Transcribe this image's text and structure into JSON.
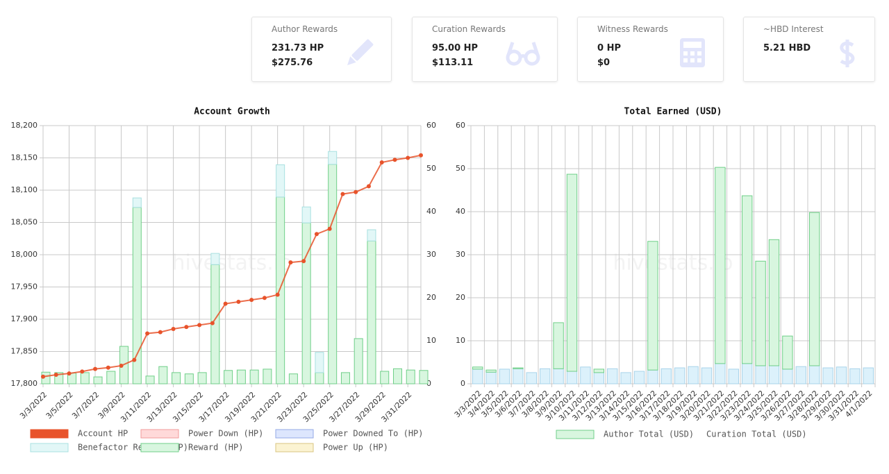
{
  "cards": [
    {
      "title": "Author Rewards",
      "lines": [
        "231.73 HP",
        "$275.76"
      ]
    },
    {
      "title": "Curation Rewards",
      "lines": [
        "95.00 HP",
        "$113.11"
      ]
    },
    {
      "title": "Witness Rewards",
      "lines": [
        "0 HP",
        "$0"
      ]
    },
    {
      "title": "~HBD Interest",
      "lines": [
        "5.21 HBD"
      ]
    }
  ],
  "chart_data": [
    {
      "type": "combo",
      "title": "Account Growth",
      "watermark": "hivestats.io",
      "categories": [
        "3/3/2022",
        null,
        "3/5/2022",
        null,
        "3/7/2022",
        null,
        "3/9/2022",
        null,
        "3/11/2022",
        null,
        "3/13/2022",
        null,
        "3/15/2022",
        null,
        "3/17/2022",
        null,
        "3/19/2022",
        null,
        "3/21/2022",
        null,
        "3/23/2022",
        null,
        "3/25/2022",
        null,
        "3/27/2022",
        null,
        "3/29/2022",
        null,
        "3/31/2022",
        null
      ],
      "ylim": [
        17800,
        18200
      ],
      "yticks": [
        {
          "value": 17800,
          "label": "17,800"
        },
        {
          "value": 17850,
          "label": "17,850"
        },
        {
          "value": 17900,
          "label": "17,900"
        },
        {
          "value": 17950,
          "label": "17,950"
        },
        {
          "value": 18000,
          "label": "18,000"
        },
        {
          "value": 18050,
          "label": "18,050"
        },
        {
          "value": 18100,
          "label": "18,100"
        },
        {
          "value": 18150,
          "label": "18,150"
        },
        {
          "value": 18200,
          "label": "18,200"
        }
      ],
      "y2lim": [
        0,
        60
      ],
      "y2ticks": [
        0,
        10,
        20,
        30,
        40,
        50,
        60
      ],
      "grid": true,
      "series": [
        {
          "name": "Account HP",
          "type": "line",
          "color": "#e8532b",
          "values": [
            17811,
            17814,
            17816,
            17819,
            17823,
            17825,
            17828,
            17837,
            17878,
            17880,
            17885,
            17888,
            17891,
            17894,
            17924,
            17927,
            17930,
            17933,
            17938,
            17988,
            17990,
            18032,
            18040,
            18094,
            18097,
            18106,
            18143,
            18147,
            18150,
            18154
          ]
        },
        {
          "name": "Power Down (HP)",
          "axis": "y2",
          "color": "#ffd9d9",
          "border": "#f09a9a",
          "values": [
            0,
            0,
            0,
            0,
            0,
            0,
            0,
            0,
            0,
            0,
            0,
            0,
            0,
            0,
            0,
            0,
            0,
            0,
            0,
            0,
            0,
            0,
            0,
            0,
            0,
            0,
            0,
            0,
            0,
            0
          ]
        },
        {
          "name": "Power Downed To (HP)",
          "axis": "y2",
          "color": "#dde6fd",
          "border": "#93a8e6",
          "values": [
            0,
            0,
            0,
            0,
            0,
            0,
            0,
            0,
            0,
            0,
            0,
            0,
            0,
            0,
            0,
            0,
            0,
            0,
            0,
            0,
            0,
            0,
            0,
            0,
            0,
            0,
            0,
            0,
            0,
            0
          ]
        },
        {
          "name": "Benefactor Reward (HP)",
          "axis": "y2",
          "color": "#e2f7f7",
          "border": "#a8e0e0",
          "values": [
            0,
            0,
            0,
            0,
            0,
            0,
            0,
            2.2,
            0,
            0,
            0,
            0,
            0,
            2.6,
            0,
            0,
            0,
            0,
            7.5,
            0,
            3.7,
            4.7,
            3,
            0,
            0,
            2.6,
            0,
            0,
            0,
            0
          ]
        },
        {
          "name": "Reward (HP)",
          "axis": "y2",
          "color": "#d8f6df",
          "border": "#6fcf88",
          "values": [
            2.7,
            2.6,
            2.5,
            2.6,
            1.6,
            2.9,
            8.7,
            41,
            1.8,
            4,
            2.6,
            2.3,
            2.6,
            27.7,
            3.1,
            3.2,
            3.2,
            3.4,
            43.4,
            2.3,
            37.4,
            2.6,
            51,
            2.6,
            10.5,
            33.2,
            2.9,
            3.5,
            3.2,
            3.1
          ]
        },
        {
          "name": "Power Up (HP)",
          "axis": "y2",
          "color": "#fbf3d2",
          "border": "#d8c682",
          "values": [
            0,
            0,
            0,
            0,
            0,
            0,
            0,
            0,
            0,
            0,
            0,
            0,
            0,
            0,
            0,
            0,
            0,
            0,
            0,
            0,
            0,
            0,
            0,
            0,
            0,
            0,
            0,
            0,
            0,
            0
          ]
        }
      ]
    },
    {
      "type": "bar",
      "title": "Total Earned (USD)",
      "watermark": "hivestats.io",
      "stacked": true,
      "categories": [
        "3/3/2022",
        "3/4/2022",
        "3/5/2022",
        "3/6/2022",
        "3/7/2022",
        "3/8/2022",
        "3/9/2022",
        "3/10/2022",
        "3/11/2022",
        "3/12/2022",
        "3/13/2022",
        "3/14/2022",
        "3/15/2022",
        "3/16/2022",
        "3/17/2022",
        "3/18/2022",
        "3/19/2022",
        "3/20/2022",
        "3/21/2022",
        "3/22/2022",
        "3/23/2022",
        "3/24/2022",
        "3/25/2022",
        "3/26/2022",
        "3/27/2022",
        "3/28/2022",
        "3/29/2022",
        "3/30/2022",
        "3/31/2022",
        "4/1/2022"
      ],
      "ylim": [
        0,
        60
      ],
      "yticks": [
        0,
        10,
        20,
        30,
        40,
        50,
        60
      ],
      "grid": true,
      "series": [
        {
          "name": "Author Total (USD)",
          "color": "#d8f6df",
          "border": "#6fcf88",
          "values": [
            0.5,
            0.5,
            0,
            0.2,
            0,
            0,
            10.7,
            45.8,
            0,
            0.8,
            0,
            0,
            0,
            29.9,
            0,
            0,
            0,
            0,
            45.6,
            0,
            39,
            24.3,
            29.3,
            7.7,
            0,
            35.6,
            0,
            0,
            0,
            0
          ]
        },
        {
          "name": "Curation Total (USD)",
          "color": "#dcf1fb",
          "border": "#a9d4ea",
          "values": [
            3.4,
            2.7,
            3.4,
            3.5,
            2.6,
            3.5,
            3.5,
            2.9,
            3.9,
            2.6,
            3.5,
            2.6,
            2.9,
            3.2,
            3.5,
            3.7,
            4,
            3.7,
            4.7,
            3.4,
            4.7,
            4.2,
            4.2,
            3.4,
            4,
            4.2,
            3.7,
            3.9,
            3.5,
            3.7
          ]
        }
      ]
    }
  ]
}
